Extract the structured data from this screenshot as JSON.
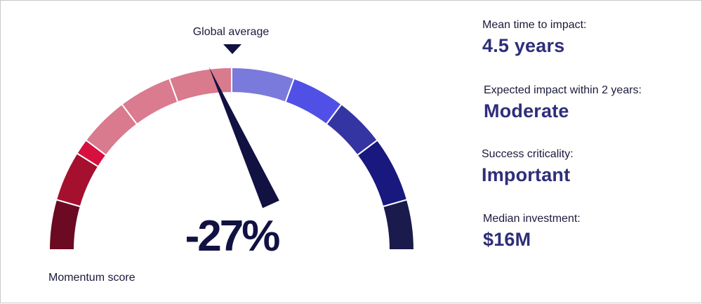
{
  "chart_data": {
    "type": "gauge",
    "value_percent": -27,
    "value_label": "-27%",
    "range": [
      -100,
      100
    ],
    "marker_label": "Global average",
    "marker_value_percent": 0,
    "axis_label": "Momentum score",
    "segments": [
      {
        "color": "#6b0a22"
      },
      {
        "color": "#a5102e"
      },
      {
        "color": "#d8103f"
      },
      {
        "color": "#d97a8e"
      },
      {
        "color": "#da7b90"
      },
      {
        "color": "#d97a8d"
      },
      {
        "color": "#7a79dc"
      },
      {
        "color": "#5050e6"
      },
      {
        "color": "#3434a2"
      },
      {
        "color": "#18187e"
      },
      {
        "color": "#1a1a4c"
      }
    ]
  },
  "metrics": [
    {
      "label": "Mean time to impact:",
      "value": "4.5 years"
    },
    {
      "label": "Expected impact within 2 years:",
      "value": "Moderate"
    },
    {
      "label": "Success criticality:",
      "value": "Important"
    },
    {
      "label": "Median investment:",
      "value": "$16M"
    }
  ],
  "colors": {
    "needle": "#111142",
    "value_text": "#111142",
    "metric_value": "#2e2e7a",
    "label_text": "#1b1b3a"
  }
}
